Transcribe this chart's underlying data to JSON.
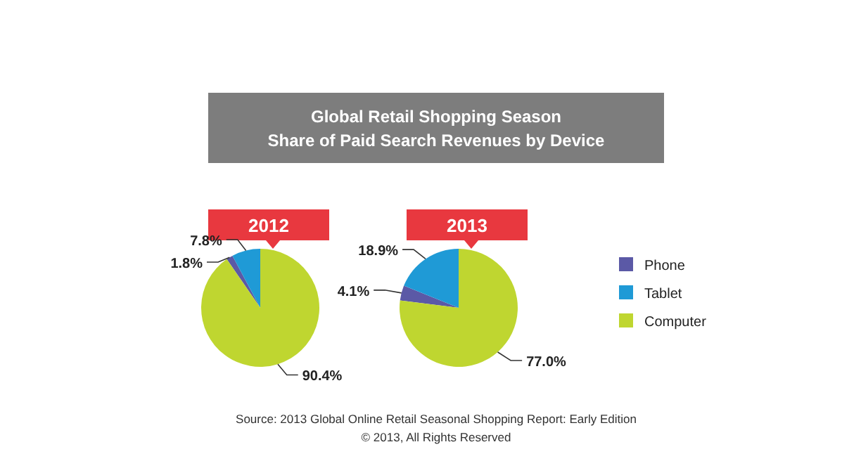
{
  "chart_data": [
    {
      "type": "other",
      "title": "Global Retail Shopping Season",
      "subtitle": "Share of Paid Search Revenues by Device",
      "annotations": [
        "Source: 2013 Global Online Retail Seasonal Shopping Report: Early Edition",
        "© 2013, All Rights Reserved"
      ]
    },
    {
      "type": "pie",
      "title": "2012",
      "categories": [
        null,
        null,
        null
      ],
      "values": [
        1.8,
        7.8,
        90.4
      ],
      "colors": [
        "#5b59a6",
        "#1f9ad6",
        "#bfd630"
      ],
      "value_labels": [
        "1.8%",
        "7.8%",
        "90.4%"
      ],
      "legend": false
    },
    {
      "type": "pie",
      "title": "2013",
      "categories": [
        "Phone",
        "Tablet",
        "Computer"
      ],
      "values": [
        4.1,
        18.9,
        77.0
      ],
      "colors": [
        "#5b59a6",
        "#1f9ad6",
        "#bfd630"
      ],
      "value_labels": [
        "4.1%",
        "18.9%",
        "77.0%"
      ],
      "legend": "right"
    }
  ]
}
